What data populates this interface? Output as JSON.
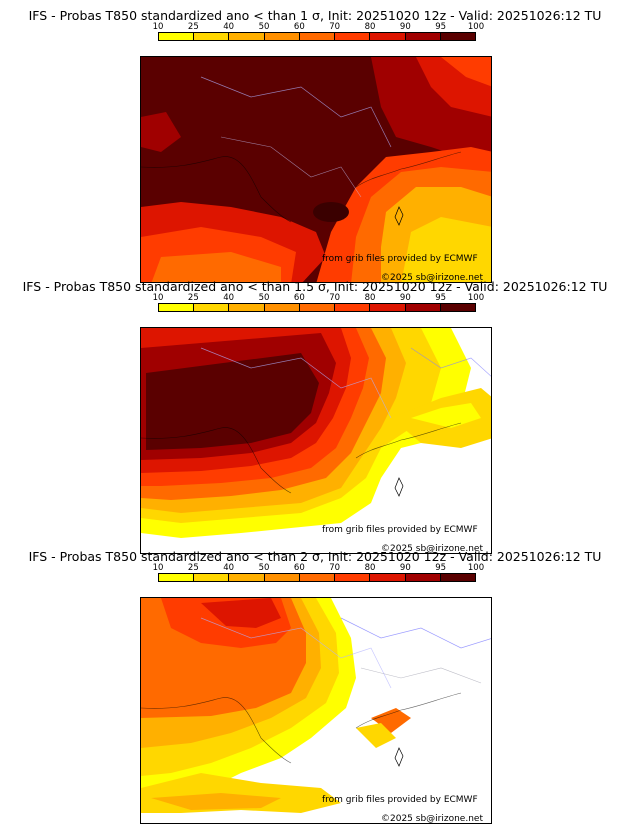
{
  "colorbar": {
    "ticks": [
      "10",
      "25",
      "40",
      "50",
      "60",
      "70",
      "80",
      "90",
      "95",
      "100"
    ],
    "colors": [
      "#ffff00",
      "#ffd700",
      "#ffb000",
      "#ff9000",
      "#ff6a00",
      "#ff3c00",
      "#dd1500",
      "#a00000",
      "#5a0000"
    ]
  },
  "panels": [
    {
      "title": "IFS - Probas T850  standardized ano < than 1 σ, Init: 20251020 12z - Valid: 20251026:12 TU",
      "credit_source": "from grib files provided by ECMWF",
      "credit_copyright": "©2025 sb@irizone.net"
    },
    {
      "title": "IFS - Probas T850  standardized ano < than 1.5 σ, Init: 20251020 12z - Valid: 20251026:12 TU",
      "credit_source": "from grib files provided by ECMWF",
      "credit_copyright": "©2025 sb@irizone.net"
    },
    {
      "title": "IFS - Probas T850  standardized ano < than 2 σ, Init: 20251020 12z - Valid: 20251026:12 TU",
      "credit_source": "from grib files provided by ECMWF",
      "credit_copyright": "©2025 sb@irizone.net"
    }
  ]
}
